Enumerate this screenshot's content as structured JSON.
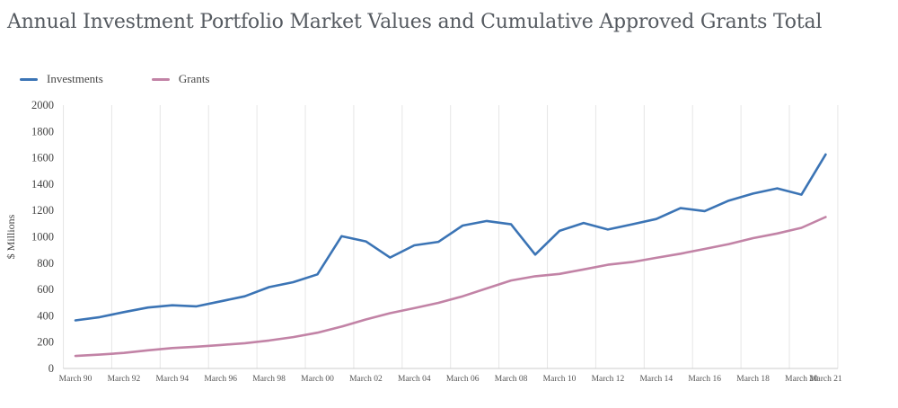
{
  "chart_data": {
    "type": "line",
    "title": "Annual Investment Portfolio Market Values and Cumulative Approved Grants Total",
    "xlabel": "",
    "ylabel": "$ Millions",
    "ylim": [
      0,
      2000
    ],
    "y_ticks": [
      0,
      200,
      400,
      600,
      800,
      1000,
      1200,
      1400,
      1600,
      1800,
      2000
    ],
    "grid": "vertical",
    "legend_position": "top-left",
    "categories": [
      "March 90",
      "March 91",
      "March 92",
      "March 93",
      "March 94",
      "March 95",
      "March 96",
      "March 97",
      "March 98",
      "March 99",
      "March 00",
      "March 01",
      "March 02",
      "March 03",
      "March 04",
      "March 05",
      "March 06",
      "March 07",
      "March 08",
      "March 09",
      "March 10",
      "March 11",
      "March 12",
      "March 13",
      "March 14",
      "March 15",
      "March 16",
      "March 17",
      "March 18",
      "March 19",
      "March 20",
      "March 21"
    ],
    "x_tick_labels": [
      "March 90",
      "March 92",
      "March 94",
      "March 96",
      "March 98",
      "March 00",
      "March 02",
      "March 04",
      "March 06",
      "March 08",
      "March 10",
      "March 12",
      "March 14",
      "March 16",
      "March 18",
      "March 20",
      "March 21"
    ],
    "x_tick_index": [
      0,
      2,
      4,
      6,
      8,
      10,
      12,
      14,
      16,
      18,
      20,
      22,
      24,
      26,
      28,
      30,
      31
    ],
    "series": [
      {
        "name": "Investments",
        "color": "#3b74b5",
        "values": [
          365,
          390,
          428,
          463,
          480,
          472,
          510,
          548,
          618,
          655,
          715,
          1005,
          965,
          842,
          935,
          962,
          1085,
          1120,
          1095,
          865,
          1045,
          1105,
          1055,
          1095,
          1135,
          1218,
          1195,
          1275,
          1328,
          1368,
          1320,
          1625
        ]
      },
      {
        "name": "Grants",
        "color": "#c283a6",
        "values": [
          95,
          105,
          118,
          138,
          155,
          165,
          178,
          192,
          212,
          238,
          272,
          318,
          372,
          420,
          458,
          498,
          548,
          608,
          668,
          700,
          718,
          752,
          788,
          808,
          840,
          872,
          908,
          945,
          990,
          1025,
          1068,
          1150
        ]
      }
    ]
  }
}
